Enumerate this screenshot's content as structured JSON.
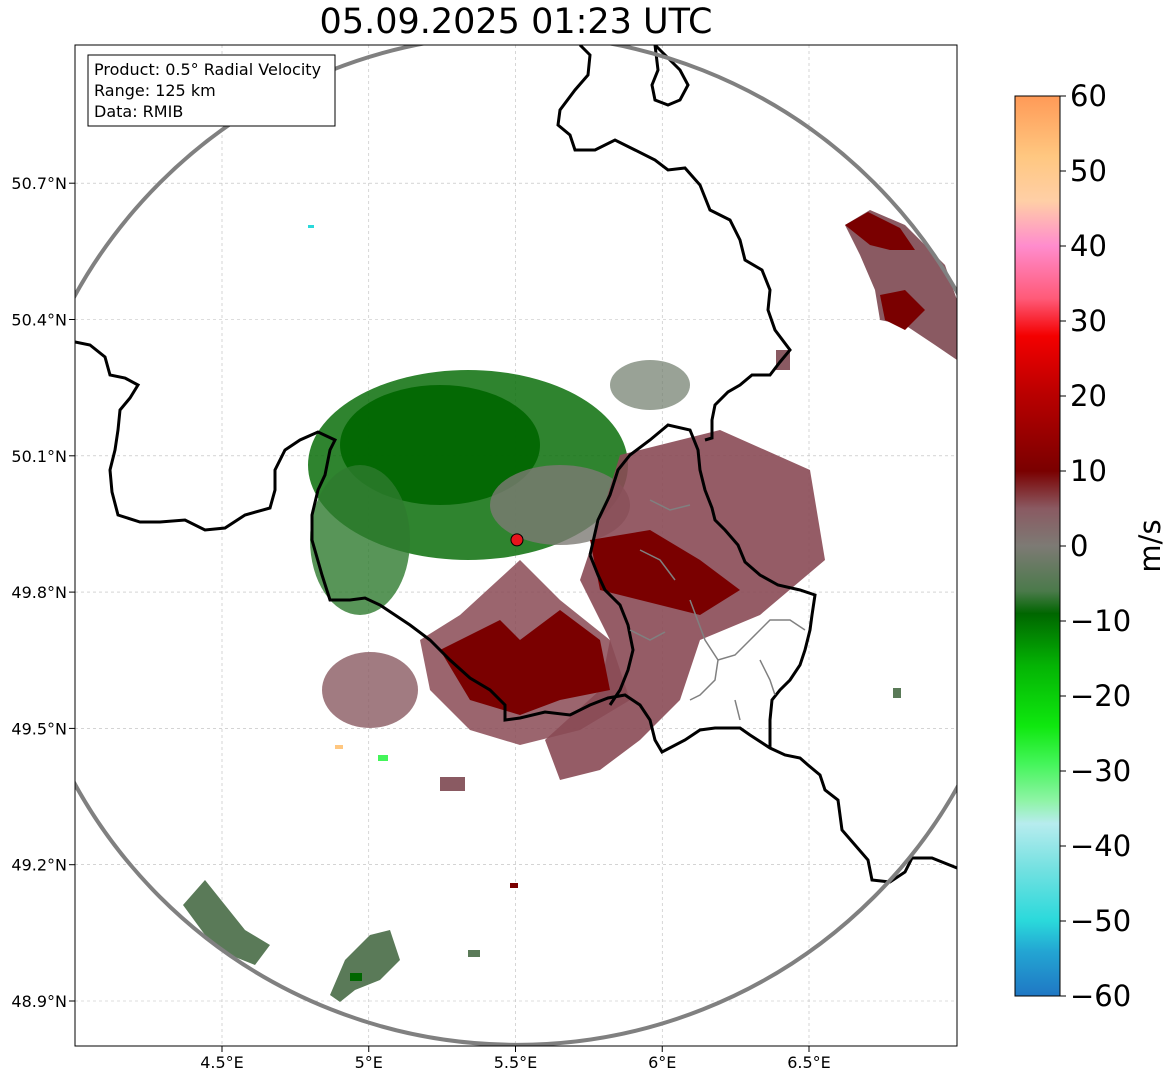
{
  "title": "05.09.2025 01:23 UTC",
  "info_box": {
    "line1": "Product: 0.5° Radial Velocity",
    "line2": "Range: 125 km",
    "line3": "Data: RMIB"
  },
  "map": {
    "lon_range": [
      4.0,
      7.0
    ],
    "lat_range": [
      48.8,
      50.98
    ],
    "lon_ticks": [
      4.5,
      5.0,
      5.5,
      6.0,
      6.5
    ],
    "lon_tick_labels": [
      "4.5°E",
      "5°E",
      "5.5°E",
      "6°E",
      "6.5°E"
    ],
    "lat_ticks": [
      48.9,
      49.2,
      49.5,
      49.8,
      50.1,
      50.4,
      50.7
    ],
    "lat_tick_labels": [
      "48.9°N",
      "49.2°N",
      "49.5°N",
      "49.8°N",
      "50.1°N",
      "50.4°N",
      "50.7°N"
    ],
    "radar_site": {
      "lon": 5.505,
      "lat": 49.915,
      "range_km": 125
    },
    "colors": {
      "range_ring": "#808080",
      "border": "#000000",
      "grid": "#bbbbbb",
      "radar_marker": "#e8141c"
    }
  },
  "colorbar": {
    "label": "m/s",
    "min": -60,
    "max": 60,
    "ticks": [
      60,
      50,
      40,
      30,
      20,
      10,
      0,
      -10,
      -20,
      -30,
      -40,
      -50,
      -60
    ],
    "tick_labels": [
      "60",
      "50",
      "40",
      "30",
      "20",
      "10",
      "0",
      "−10",
      "−20",
      "−30",
      "−40",
      "−50",
      "−60"
    ],
    "stops": [
      {
        "v": -60,
        "c": "#1f77c4"
      },
      {
        "v": -54,
        "c": "#23a6d3"
      },
      {
        "v": -50,
        "c": "#2ad9db"
      },
      {
        "v": -43,
        "c": "#74e1e1"
      },
      {
        "v": -37,
        "c": "#b7ecee"
      },
      {
        "v": -34,
        "c": "#8ff4a6"
      },
      {
        "v": -29,
        "c": "#44f55a"
      },
      {
        "v": -24,
        "c": "#0fe80f"
      },
      {
        "v": -16,
        "c": "#04b404"
      },
      {
        "v": -9,
        "c": "#006600"
      },
      {
        "v": -6,
        "c": "#4b7a4b"
      },
      {
        "v": 0,
        "c": "#7d7a74"
      },
      {
        "v": 5,
        "c": "#8a5a62"
      },
      {
        "v": 10,
        "c": "#7a0000"
      },
      {
        "v": 20,
        "c": "#b80000"
      },
      {
        "v": 28,
        "c": "#f40000"
      },
      {
        "v": 33,
        "c": "#ff5a78"
      },
      {
        "v": 40,
        "c": "#ff8ccd"
      },
      {
        "v": 46,
        "c": "#ffcfa6"
      },
      {
        "v": 52,
        "c": "#ffc780"
      },
      {
        "v": 60,
        "c": "#ff9a57"
      }
    ]
  }
}
